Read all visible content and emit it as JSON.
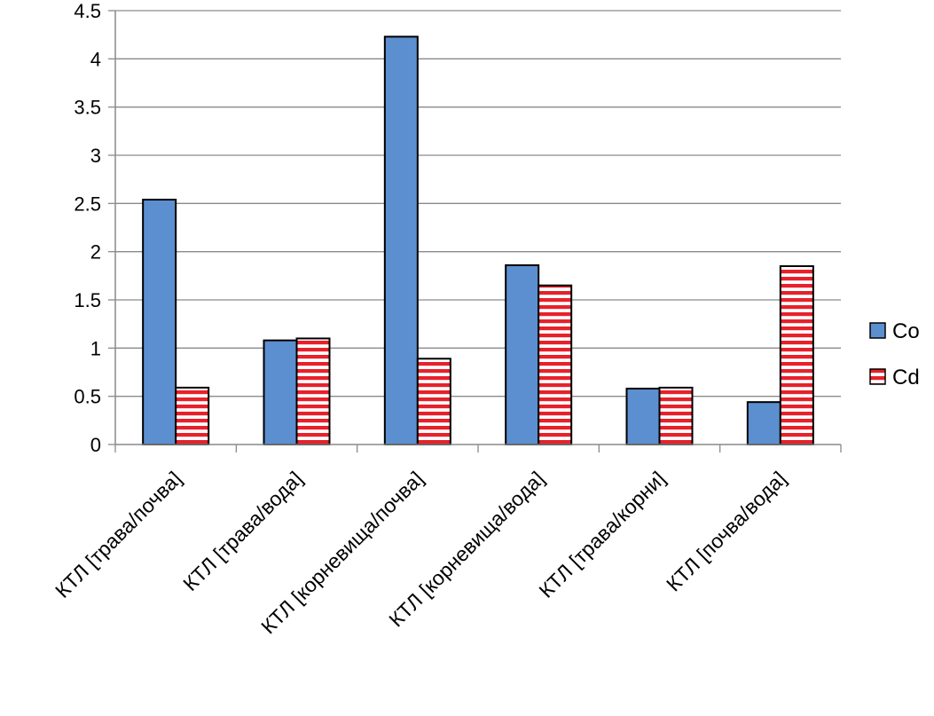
{
  "chart_data": {
    "type": "bar",
    "categories": [
      "КТЛ [трава/почва]",
      "КТЛ [трава/вода]",
      "КТЛ [корневища/почва]",
      "КТЛ [корневища/вода]",
      "КТЛ [трава/корни]",
      "КТЛ [почва/вода]"
    ],
    "series": [
      {
        "name": "Co",
        "values": [
          2.54,
          1.08,
          4.23,
          1.86,
          0.58,
          0.44
        ],
        "color": "#5b8fd0",
        "fill": "solid"
      },
      {
        "name": "Cd",
        "values": [
          0.59,
          1.1,
          0.89,
          1.65,
          0.59,
          1.85
        ],
        "color": "#e8202a",
        "fill": "horizontal-stripes"
      }
    ],
    "yticks": [
      "0",
      "0.5",
      "1",
      "1.5",
      "2",
      "2.5",
      "3",
      "3.5",
      "4",
      "4.5"
    ],
    "ylim": [
      0,
      4.5
    ],
    "grid": true,
    "legend": "right",
    "title": "",
    "xlabel": "",
    "ylabel": ""
  }
}
